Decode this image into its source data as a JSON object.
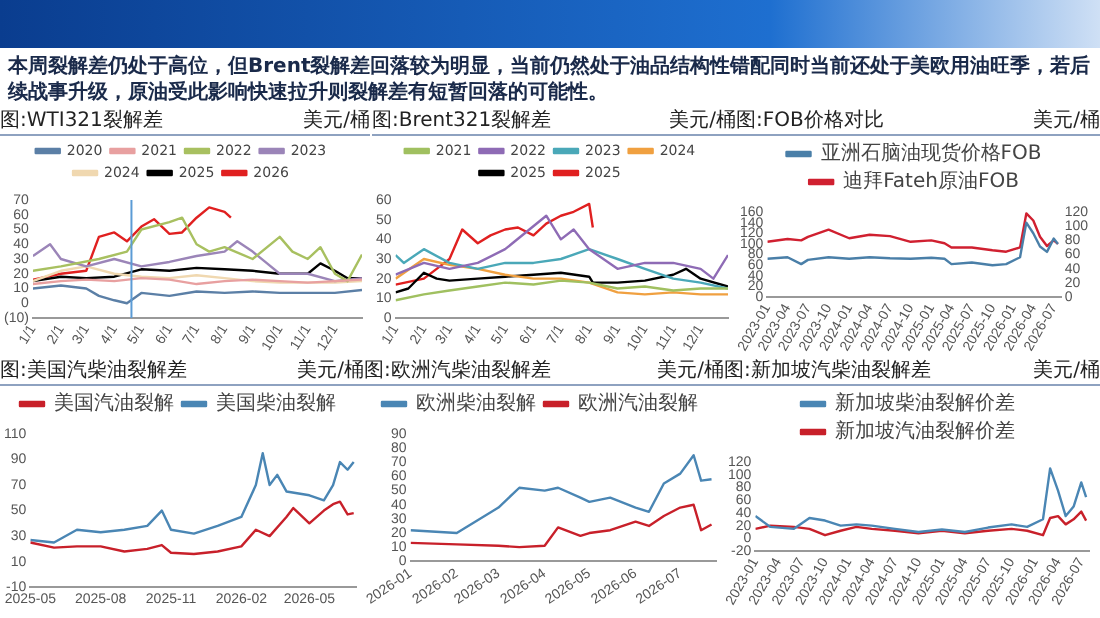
{
  "chart_data": [
    {
      "type": "other",
      "title": "本周裂解差仍处于高位，但Brent裂解差回落较为明显，当前仍然处于油品结构性错配同时当前还处于美欧用油旺季，若后续战事升级，原油受此影响快速拉升则裂解差有短暂回落的可能性。"
    },
    {
      "type": "line",
      "title": "图:WTI321裂解差",
      "ylabel": "美元/桶",
      "legend": "top",
      "marker": "none",
      "xlim": [
        "--01-01",
        "--12-31"
      ],
      "xticks": [
        {
          "value": "--01-01",
          "label": "1/1"
        },
        {
          "value": "--02-01",
          "label": "2/1"
        },
        {
          "value": "--03-01",
          "label": "3/1"
        },
        {
          "value": "--04-01",
          "label": "4/1"
        },
        {
          "value": "--05-01",
          "label": "5/1"
        },
        {
          "value": "--06-01",
          "label": "6/1"
        },
        {
          "value": "--07-01",
          "label": "7/1"
        },
        {
          "value": "--08-01",
          "label": "8/1"
        },
        {
          "value": "--09-01",
          "label": "9/1"
        },
        {
          "value": "--10-01",
          "label": "10/1"
        },
        {
          "value": "--11-01",
          "label": "11/1"
        },
        {
          "value": "--12-01",
          "label": "12/1"
        }
      ],
      "ylim": [
        -10,
        70
      ],
      "yticks": [
        {
          "value": -10,
          "label": "(10)"
        },
        0,
        10,
        20,
        30,
        40,
        50,
        60,
        70
      ],
      "ref_lines": [
        {
          "axis": "x",
          "value": "--04-20",
          "color": "#5b9bd5"
        }
      ],
      "series": [
        {
          "name": "2020",
          "color": "#5b7fa6",
          "x": [
            "--01-01",
            "--02-01",
            "--03-01",
            "--03-15",
            "--04-01",
            "--04-15",
            "--05-01",
            "--06-01",
            "--07-01",
            "--08-01",
            "--09-01",
            "--10-01",
            "--11-01",
            "--12-01",
            "--12-31"
          ],
          "values": [
            10,
            12,
            10,
            5,
            2,
            0,
            7,
            5,
            8,
            7,
            8,
            7,
            7,
            7,
            9
          ]
        },
        {
          "name": "2021",
          "color": "#e8a0a0",
          "x": [
            "--01-01",
            "--02-01",
            "--03-01",
            "--04-01",
            "--05-01",
            "--06-01",
            "--07-01",
            "--08-01",
            "--09-01",
            "--10-01",
            "--11-01",
            "--12-01",
            "--12-31"
          ],
          "values": [
            13,
            15,
            16,
            15,
            17,
            16,
            13,
            15,
            16,
            15,
            14,
            15,
            16
          ]
        },
        {
          "name": "2022",
          "color": "#a8c060",
          "x": [
            "--01-01",
            "--02-01",
            "--03-15",
            "--04-15",
            "--05-01",
            "--06-01",
            "--06-15",
            "--07-01",
            "--07-15",
            "--08-01",
            "--09-01",
            "--10-01",
            "--10-15",
            "--11-01",
            "--11-15",
            "--12-01",
            "--12-15",
            "--12-31"
          ],
          "values": [
            22,
            25,
            30,
            35,
            50,
            55,
            58,
            40,
            35,
            38,
            30,
            45,
            35,
            30,
            38,
            20,
            15,
            33
          ]
        },
        {
          "name": "2023",
          "color": "#9b85b8",
          "x": [
            "--01-01",
            "--01-20",
            "--02-01",
            "--03-01",
            "--04-01",
            "--05-01",
            "--06-01",
            "--07-01",
            "--08-01",
            "--08-15",
            "--09-01",
            "--09-15",
            "--10-01",
            "--11-01",
            "--12-01",
            "--12-31"
          ],
          "values": [
            32,
            40,
            30,
            25,
            30,
            25,
            28,
            32,
            35,
            42,
            35,
            28,
            20,
            20,
            15,
            17
          ]
        },
        {
          "name": "2024",
          "color": "#f0d8b0",
          "x": [
            "--01-01",
            "--02-01",
            "--03-01",
            "--04-01",
            "--05-01",
            "--06-01",
            "--07-01",
            "--08-01",
            "--09-01",
            "--10-01",
            "--11-01",
            "--12-01",
            "--12-31"
          ],
          "values": [
            15,
            22,
            25,
            20,
            18,
            17,
            19,
            17,
            15,
            14,
            14,
            14,
            15
          ]
        },
        {
          "name": "2025",
          "color": "#000000",
          "x": [
            "--01-01",
            "--02-01",
            "--03-01",
            "--04-01",
            "--05-01",
            "--06-01",
            "--07-01",
            "--08-01",
            "--09-01",
            "--10-01",
            "--11-01",
            "--11-15",
            "--12-01",
            "--12-15",
            "--12-31"
          ],
          "values": [
            15,
            18,
            17,
            18,
            23,
            22,
            24,
            23,
            22,
            20,
            20,
            27,
            22,
            17,
            17
          ]
        },
        {
          "name": "2026",
          "color": "#e02020",
          "x": [
            "--01-01",
            "--02-01",
            "--03-01",
            "--03-15",
            "--04-01",
            "--04-15",
            "--05-01",
            "--05-15",
            "--06-01",
            "--06-15",
            "--07-01",
            "--07-15",
            "--08-01",
            "--08-08"
          ],
          "values": [
            16,
            20,
            22,
            45,
            48,
            42,
            52,
            57,
            47,
            48,
            58,
            65,
            62,
            58
          ]
        }
      ]
    },
    {
      "type": "line",
      "title": "图:Brent321裂解差",
      "ylabel": "美元/桶",
      "legend": "top",
      "marker": "none",
      "xlim": [
        "--01-01",
        "--12-31"
      ],
      "xticks": [
        {
          "value": "--01-01",
          "label": "1/1"
        },
        {
          "value": "--02-01",
          "label": "2/1"
        },
        {
          "value": "--03-01",
          "label": "3/1"
        },
        {
          "value": "--04-01",
          "label": "4/1"
        },
        {
          "value": "--05-01",
          "label": "5/1"
        },
        {
          "value": "--06-01",
          "label": "6/1"
        },
        {
          "value": "--07-01",
          "label": "7/1"
        },
        {
          "value": "--08-01",
          "label": "8/1"
        },
        {
          "value": "--09-01",
          "label": "9/1"
        },
        {
          "value": "--10-01",
          "label": "10/1"
        },
        {
          "value": "--11-01",
          "label": "11/1"
        },
        {
          "value": "--12-01",
          "label": "12/1"
        }
      ],
      "ylim": [
        0,
        60
      ],
      "yticks": [
        0,
        10,
        20,
        30,
        40,
        50,
        60
      ],
      "series": [
        {
          "name": "2021",
          "color": "#a0c060",
          "x": [
            "--01-01",
            "--02-01",
            "--03-01",
            "--04-01",
            "--05-01",
            "--06-01",
            "--07-01",
            "--08-01",
            "--09-01",
            "--10-01",
            "--11-01",
            "--12-01",
            "--12-31"
          ],
          "values": [
            9,
            12,
            14,
            16,
            18,
            17,
            19,
            18,
            15,
            16,
            14,
            15,
            15
          ]
        },
        {
          "name": "2022",
          "color": "#8e6bb5",
          "x": [
            "--01-01",
            "--02-01",
            "--03-01",
            "--04-01",
            "--05-01",
            "--06-15",
            "--07-01",
            "--07-15",
            "--08-01",
            "--09-01",
            "--10-01",
            "--11-01",
            "--12-01",
            "--12-15",
            "--12-31"
          ],
          "values": [
            22,
            28,
            25,
            28,
            35,
            52,
            40,
            45,
            35,
            25,
            28,
            28,
            25,
            20,
            32
          ]
        },
        {
          "name": "2023",
          "color": "#4aa8b8",
          "x": [
            "--01-01",
            "--01-10",
            "--02-01",
            "--03-01",
            "--04-01",
            "--05-01",
            "--06-01",
            "--07-01",
            "--08-01",
            "--09-01",
            "--10-01",
            "--11-01",
            "--12-01",
            "--12-31"
          ],
          "values": [
            32,
            28,
            35,
            28,
            25,
            28,
            28,
            30,
            35,
            30,
            25,
            20,
            18,
            15
          ]
        },
        {
          "name": "2024",
          "color": "#f0a040",
          "x": [
            "--01-01",
            "--02-01",
            "--03-01",
            "--04-01",
            "--05-01",
            "--06-01",
            "--07-01",
            "--08-01",
            "--09-01",
            "--10-01",
            "--11-01",
            "--12-01",
            "--12-31"
          ],
          "values": [
            20,
            30,
            27,
            25,
            22,
            20,
            20,
            18,
            13,
            12,
            13,
            12,
            12
          ]
        },
        {
          "name": "2025",
          "color": "#000000",
          "x": [
            "--01-01",
            "--01-15",
            "--02-01",
            "--02-15",
            "--03-01",
            "--04-01",
            "--05-01",
            "--06-01",
            "--07-01",
            "--08-01",
            "--08-05",
            "--09-01",
            "--10-01",
            "--11-01",
            "--11-15",
            "--12-01",
            "--12-31"
          ],
          "values": [
            13,
            15,
            23,
            20,
            19,
            20,
            21,
            22,
            23,
            21,
            18,
            18,
            19,
            22,
            25,
            20,
            16
          ]
        },
        {
          "name": "2025",
          "color": "#e02020",
          "x": [
            "--01-01",
            "--02-01",
            "--02-15",
            "--03-01",
            "--03-15",
            "--04-01",
            "--04-15",
            "--05-01",
            "--05-15",
            "--06-01",
            "--06-15",
            "--07-01",
            "--07-15",
            "--08-01",
            "--08-05"
          ],
          "values": [
            17,
            20,
            25,
            30,
            45,
            38,
            42,
            45,
            46,
            42,
            48,
            52,
            54,
            58,
            46
          ]
        }
      ]
    },
    {
      "type": "line",
      "title": "图:FOB价格对比",
      "y2label": "美元/桶",
      "legend": "top",
      "marker": "none",
      "xlim": [
        "2023-01",
        "2026-08"
      ],
      "xticks": [
        "2023-01",
        "2023-04",
        "2023-07",
        "2023-10",
        "2024-01",
        "2024-04",
        "2024-07",
        "2024-10",
        "2025-01",
        "2025-04",
        "2025-07",
        "2025-10",
        "2026-01",
        "2026-04",
        "2026-07"
      ],
      "ylim": [
        0,
        160
      ],
      "yticks": [
        0,
        20,
        40,
        60,
        80,
        100,
        120,
        140,
        160
      ],
      "y2lim": [
        0,
        120
      ],
      "y2ticks": [
        0,
        20,
        40,
        60,
        80,
        100,
        120
      ],
      "x": [
        "2023-01",
        "2023-04",
        "2023-06",
        "2023-07",
        "2023-10",
        "2024-01",
        "2024-04",
        "2024-07",
        "2024-10",
        "2025-01",
        "2025-03",
        "2025-04",
        "2025-07",
        "2025-10",
        "2025-12",
        "2026-02",
        "2026-03",
        "2026-04",
        "2026-05",
        "2026-06",
        "2026-07",
        "2026-07-20"
      ],
      "series": [
        {
          "name": "亚洲石脑油现货价格FOB",
          "color": "#4a7fa8",
          "values": [
            72,
            75,
            62,
            70,
            75,
            72,
            75,
            73,
            72,
            74,
            72,
            62,
            65,
            60,
            62,
            75,
            140,
            120,
            95,
            85,
            110,
            100
          ]
        },
        {
          "name": "迪拜Fateh原油FOB",
          "color": "#d02030",
          "axis": "y2",
          "values": [
            78,
            82,
            80,
            85,
            95,
            83,
            88,
            86,
            78,
            80,
            76,
            70,
            70,
            66,
            64,
            70,
            118,
            108,
            85,
            72,
            80,
            75
          ]
        }
      ]
    },
    {
      "type": "line",
      "title": "图:美国汽柴油裂解差",
      "ylabel": "美元/桶",
      "legend": "top",
      "marker": "none",
      "xlim": [
        "2025-05",
        "2026-07"
      ],
      "xticks": [
        "2025-05",
        "2025-08",
        "2025-11",
        "2026-02",
        "2026-05"
      ],
      "ylim": [
        -10,
        110
      ],
      "yticks": [
        -10,
        10,
        30,
        50,
        70,
        90,
        110
      ],
      "series": [
        {
          "name": "美国汽油裂解",
          "color": "#c8202a",
          "x": [
            "2025-05",
            "2025-06",
            "2025-07",
            "2025-08",
            "2025-09",
            "2025-10",
            "2025-10-20",
            "2025-11",
            "2025-12",
            "2026-01",
            "2026-02",
            "2026-02-20",
            "2026-03-10",
            "2026-04",
            "2026-04-10",
            "2026-05",
            "2026-05-20",
            "2026-06-01",
            "2026-06-10",
            "2026-06-20",
            "2026-06-28"
          ],
          "values": [
            25,
            21,
            22,
            22,
            18,
            20,
            23,
            17,
            16,
            18,
            22,
            35,
            30,
            45,
            52,
            40,
            50,
            55,
            57,
            47,
            48
          ]
        },
        {
          "name": "美国柴油裂解",
          "color": "#4a86b4",
          "x": [
            "2025-05",
            "2025-06",
            "2025-07",
            "2025-08",
            "2025-09",
            "2025-10",
            "2025-10-20",
            "2025-11",
            "2025-12",
            "2026-01",
            "2026-02",
            "2026-02-20",
            "2026-03-01",
            "2026-03-10",
            "2026-03-20",
            "2026-04",
            "2026-05",
            "2026-05-20",
            "2026-06-01",
            "2026-06-10",
            "2026-06-20",
            "2026-06-28"
          ],
          "values": [
            27,
            25,
            35,
            33,
            35,
            38,
            50,
            35,
            32,
            38,
            45,
            70,
            95,
            70,
            78,
            65,
            62,
            58,
            70,
            88,
            82,
            88
          ]
        }
      ]
    },
    {
      "type": "line",
      "title": "图:欧洲汽柴油裂解差",
      "ylabel": "美元/桶",
      "legend": "top",
      "marker": "none",
      "xlim": [
        "2026-01",
        "2026-07-25"
      ],
      "xticks": [
        "2026-01",
        "2026-02",
        "2026-03",
        "2026-04",
        "2026-05",
        "2026-06",
        "2026-07"
      ],
      "ylim": [
        0,
        90
      ],
      "yticks": [
        0,
        10,
        20,
        30,
        40,
        50,
        60,
        70,
        80,
        90
      ],
      "x": [
        "2026-01-01",
        "2026-02-01",
        "2026-03-01",
        "2026-03-15",
        "2026-04-01",
        "2026-04-10",
        "2026-04-25",
        "2026-05-01",
        "2026-05-15",
        "2026-06-01",
        "2026-06-10",
        "2026-06-20",
        "2026-07-01",
        "2026-07-10",
        "2026-07-15",
        "2026-07-22"
      ],
      "series": [
        {
          "name": "欧洲柴油裂解",
          "color": "#4a86b4",
          "values": [
            22,
            20,
            38,
            52,
            50,
            52,
            45,
            42,
            45,
            38,
            35,
            55,
            62,
            75,
            57,
            58
          ]
        },
        {
          "name": "欧洲汽油裂解",
          "color": "#c8202a",
          "values": [
            13,
            12,
            11,
            10,
            11,
            24,
            18,
            20,
            22,
            28,
            25,
            32,
            38,
            40,
            22,
            26
          ]
        }
      ]
    },
    {
      "type": "line",
      "title": "图:新加坡汽柴油裂解差",
      "ylabel": "美元/桶",
      "legend": "top",
      "marker": "none",
      "xlim": [
        "2023-01",
        "2026-08"
      ],
      "xticks": [
        "2023-01",
        "2023-04",
        "2023-07",
        "2023-10",
        "2024-01",
        "2024-04",
        "2024-07",
        "2024-10",
        "2025-01",
        "2025-04",
        "2025-07",
        "2025-10",
        "2026-01",
        "2026-04",
        "2026-07"
      ],
      "ylim": [
        -20,
        120
      ],
      "yticks": [
        -20,
        0,
        20,
        40,
        60,
        80,
        100,
        120
      ],
      "x": [
        "2023-01",
        "2023-03",
        "2023-06",
        "2023-08",
        "2023-10",
        "2023-12",
        "2024-02",
        "2024-04",
        "2024-07",
        "2024-10",
        "2025-01",
        "2025-04",
        "2025-07",
        "2025-10",
        "2025-12",
        "2026-02",
        "2026-03",
        "2026-04",
        "2026-05",
        "2026-06",
        "2026-07",
        "2026-07-20"
      ],
      "series": [
        {
          "name": "新加坡柴油裂解价差",
          "color": "#4a86b4",
          "values": [
            35,
            18,
            15,
            32,
            28,
            20,
            22,
            20,
            15,
            10,
            14,
            10,
            17,
            22,
            18,
            30,
            110,
            75,
            35,
            50,
            88,
            65
          ]
        },
        {
          "name": "新加坡汽油裂解价差",
          "color": "#c8202a",
          "values": [
            15,
            20,
            18,
            15,
            5,
            12,
            18,
            15,
            12,
            8,
            12,
            8,
            12,
            15,
            12,
            5,
            32,
            35,
            22,
            30,
            42,
            28
          ]
        }
      ]
    }
  ]
}
